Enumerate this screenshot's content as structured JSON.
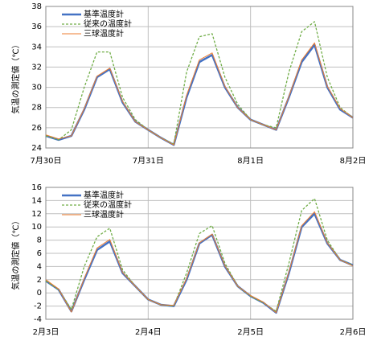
{
  "chart_data": [
    {
      "type": "line",
      "ylabel": "気温の測定値（℃）",
      "x": [
        0,
        3,
        6,
        9,
        12,
        15,
        18,
        21,
        24,
        27,
        30,
        33,
        36,
        39,
        42,
        45,
        48,
        51,
        54,
        57,
        60,
        63,
        66,
        69,
        72
      ],
      "xlim": [
        0,
        72
      ],
      "xticks": [
        {
          "value": 0,
          "label": "7月30日"
        },
        {
          "value": 24,
          "label": "7月31日"
        },
        {
          "value": 48,
          "label": "8月1日"
        },
        {
          "value": 72,
          "label": "8月2日"
        }
      ],
      "ylim": [
        24,
        38
      ],
      "yticks": [
        24,
        26,
        28,
        30,
        32,
        34,
        36,
        38
      ],
      "grid": true,
      "legend": "upper left",
      "series": [
        {
          "name": "基準温度計",
          "color": "#4472c4",
          "line_style": "solid",
          "values": [
            25.2,
            24.8,
            25.2,
            27.8,
            31.0,
            31.8,
            28.5,
            26.6,
            25.8,
            25.0,
            24.3,
            29.0,
            32.5,
            33.2,
            30.0,
            28.0,
            26.8,
            26.3,
            25.8,
            29.0,
            32.5,
            34.2,
            30.0,
            27.8,
            27.0
          ]
        },
        {
          "name": "従来の温度計",
          "color": "#70ad47",
          "line_style": "dashed",
          "values": [
            25.2,
            24.8,
            25.8,
            30.0,
            33.5,
            33.5,
            29.0,
            26.8,
            25.8,
            25.0,
            24.4,
            31.5,
            35.0,
            35.3,
            31.0,
            28.3,
            26.8,
            26.3,
            26.0,
            31.5,
            35.5,
            36.5,
            31.0,
            28.0,
            27.0
          ]
        },
        {
          "name": "三球温度計",
          "color": "#ed7d31",
          "line_style": "thin",
          "values": [
            25.3,
            24.9,
            25.2,
            27.9,
            31.1,
            31.9,
            28.6,
            26.6,
            25.8,
            25.0,
            24.3,
            29.2,
            32.7,
            33.4,
            30.1,
            28.0,
            26.8,
            26.3,
            25.8,
            29.1,
            32.7,
            34.4,
            30.1,
            27.9,
            27.0
          ]
        }
      ]
    },
    {
      "type": "line",
      "ylabel": "気温の測定値（℃）",
      "x": [
        0,
        3,
        6,
        9,
        12,
        15,
        18,
        21,
        24,
        27,
        30,
        33,
        36,
        39,
        42,
        45,
        48,
        51,
        54,
        57,
        60,
        63,
        66,
        69,
        72
      ],
      "xlim": [
        0,
        72
      ],
      "xticks": [
        {
          "value": 0,
          "label": "2月3日"
        },
        {
          "value": 24,
          "label": "2月4日"
        },
        {
          "value": 48,
          "label": "2月5日"
        },
        {
          "value": 72,
          "label": "2月6日"
        }
      ],
      "ylim": [
        -4,
        16
      ],
      "yticks": [
        -4,
        -2,
        0,
        2,
        4,
        6,
        8,
        10,
        12,
        14,
        16
      ],
      "grid": true,
      "legend": "upper left",
      "series": [
        {
          "name": "基準温度計",
          "color": "#4472c4",
          "line_style": "solid",
          "values": [
            1.8,
            0.5,
            -2.8,
            2.0,
            6.5,
            7.8,
            3.0,
            1.0,
            -1.0,
            -1.8,
            -2.0,
            2.0,
            7.5,
            8.8,
            4.0,
            1.0,
            -0.5,
            -1.5,
            -3.0,
            3.0,
            10.0,
            12.0,
            7.5,
            5.0,
            4.2
          ]
        },
        {
          "name": "従来の温度計",
          "color": "#70ad47",
          "line_style": "dashed",
          "values": [
            1.8,
            0.5,
            -2.5,
            4.0,
            8.5,
            9.8,
            3.5,
            1.0,
            -1.0,
            -1.8,
            -2.0,
            3.0,
            9.0,
            10.2,
            4.5,
            1.0,
            -0.5,
            -1.5,
            -2.8,
            4.5,
            12.5,
            14.3,
            8.0,
            5.0,
            4.2
          ]
        },
        {
          "name": "三球温度計",
          "color": "#ed7d31",
          "line_style": "thin",
          "values": [
            2.0,
            0.6,
            -2.9,
            2.2,
            6.8,
            8.1,
            3.1,
            1.0,
            -1.0,
            -1.8,
            -1.9,
            2.2,
            7.6,
            8.9,
            4.1,
            1.0,
            -0.4,
            -1.4,
            -3.0,
            3.2,
            10.2,
            12.3,
            7.6,
            5.0,
            4.1
          ]
        }
      ]
    }
  ]
}
